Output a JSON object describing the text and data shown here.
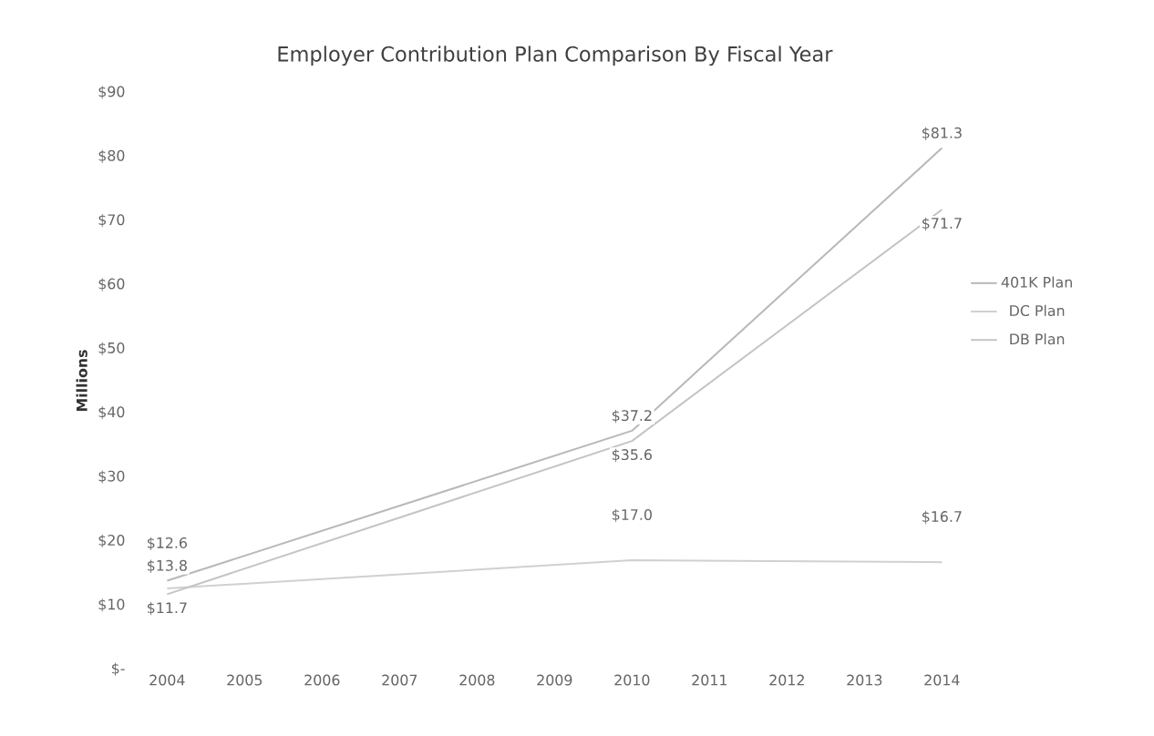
{
  "chart_data": {
    "type": "line",
    "title": "Employer Contribution Plan Comparison By Fiscal Year",
    "ylabel": "Millions",
    "xlim": [
      2004,
      2014
    ],
    "xticks": [
      2004,
      2005,
      2006,
      2007,
      2008,
      2009,
      2010,
      2011,
      2012,
      2013,
      2014
    ],
    "ylim": [
      0,
      90
    ],
    "yticks": [
      {
        "value": 0,
        "label": "$-"
      },
      {
        "value": 10,
        "label": "$10"
      },
      {
        "value": 20,
        "label": "$20"
      },
      {
        "value": 30,
        "label": "$30"
      },
      {
        "value": 40,
        "label": "$40"
      },
      {
        "value": 50,
        "label": "$50"
      },
      {
        "value": 60,
        "label": "$60"
      },
      {
        "value": 70,
        "label": "$70"
      },
      {
        "value": 80,
        "label": "$80"
      },
      {
        "value": 90,
        "label": "$90"
      }
    ],
    "grid": false,
    "legend": "right",
    "marker": "none",
    "line_style": "solid",
    "series": [
      {
        "name": "401K Plan",
        "color": "#b8b8b8",
        "x": [
          2004,
          2010,
          2014
        ],
        "values": [
          13.8,
          37.2,
          81.3
        ],
        "value_labels": [
          "$13.8",
          "$37.2",
          "$81.3"
        ]
      },
      {
        "name": "DC Plan",
        "color": "#d0d0d0",
        "x": [
          2004,
          2010,
          2014
        ],
        "values": [
          12.6,
          17.0,
          16.7
        ],
        "value_labels": [
          "$12.6",
          "$17.0",
          "$16.7"
        ]
      },
      {
        "name": "DB Plan",
        "color": "#c4c4c4",
        "x": [
          2004,
          2010,
          2014
        ],
        "values": [
          11.7,
          35.6,
          71.7
        ],
        "value_labels": [
          "$11.7",
          "$35.6",
          "$71.7"
        ]
      }
    ]
  }
}
